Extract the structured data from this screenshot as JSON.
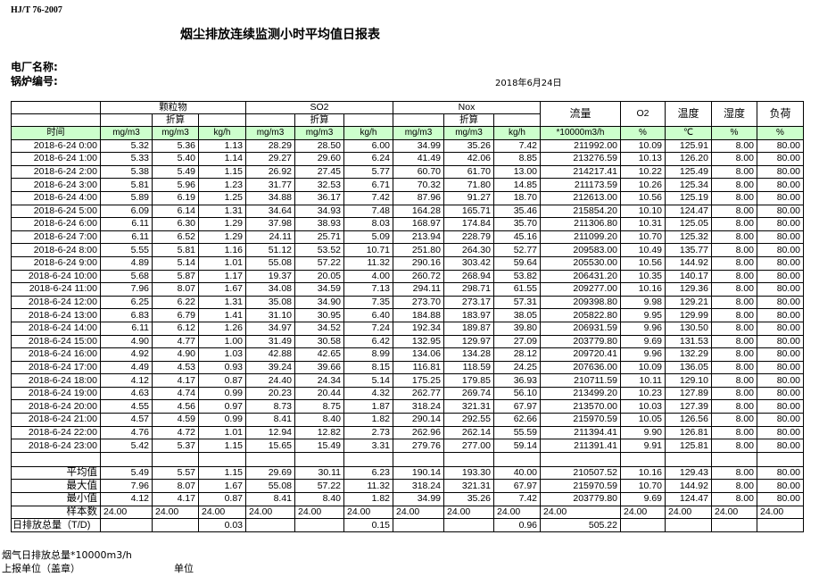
{
  "header": {
    "standard": "HJ/T  76-2007",
    "title": "烟尘排放连续监测小时平均值日报表",
    "plant_label": "电厂名称:",
    "boiler_label": "锅炉编号:",
    "date": "2018年6月24日"
  },
  "table": {
    "groups": [
      "颗粒物",
      "SO2",
      "Nox"
    ],
    "converted_label": "折算",
    "single_headers": [
      "流量",
      "O2",
      "温度",
      "湿度",
      "负荷"
    ],
    "unit_row": [
      "时间",
      "mg/m3",
      "mg/m3",
      "kg/h",
      "mg/m3",
      "mg/m3",
      "kg/h",
      "mg/m3",
      "mg/m3",
      "kg/h",
      "*10000m3/h",
      "%",
      "℃",
      "%",
      "%"
    ],
    "rows": [
      [
        "2018-6-24 0:00",
        "5.32",
        "5.36",
        "1.13",
        "28.29",
        "28.50",
        "6.00",
        "34.99",
        "35.26",
        "7.42",
        "211992.00",
        "10.09",
        "125.91",
        "8.00",
        "80.00"
      ],
      [
        "2018-6-24 1:00",
        "5.33",
        "5.40",
        "1.14",
        "29.27",
        "29.60",
        "6.24",
        "41.49",
        "42.06",
        "8.85",
        "213276.59",
        "10.13",
        "126.20",
        "8.00",
        "80.00"
      ],
      [
        "2018-6-24 2:00",
        "5.38",
        "5.49",
        "1.15",
        "26.92",
        "27.45",
        "5.77",
        "60.70",
        "61.70",
        "13.00",
        "214217.41",
        "10.22",
        "125.49",
        "8.00",
        "80.00"
      ],
      [
        "2018-6-24 3:00",
        "5.81",
        "5.96",
        "1.23",
        "31.77",
        "32.53",
        "6.71",
        "70.32",
        "71.80",
        "14.85",
        "211173.59",
        "10.26",
        "125.34",
        "8.00",
        "80.00"
      ],
      [
        "2018-6-24 4:00",
        "5.89",
        "6.19",
        "1.25",
        "34.88",
        "36.17",
        "7.42",
        "87.96",
        "91.27",
        "18.70",
        "212613.00",
        "10.56",
        "125.19",
        "8.00",
        "80.00"
      ],
      [
        "2018-6-24 5:00",
        "6.09",
        "6.14",
        "1.31",
        "34.64",
        "34.93",
        "7.48",
        "164.28",
        "165.71",
        "35.46",
        "215854.20",
        "10.10",
        "124.47",
        "8.00",
        "80.00"
      ],
      [
        "2018-6-24 6:00",
        "6.11",
        "6.30",
        "1.29",
        "37.98",
        "38.93",
        "8.03",
        "168.97",
        "174.84",
        "35.70",
        "211306.80",
        "10.31",
        "125.05",
        "8.00",
        "80.00"
      ],
      [
        "2018-6-24 7:00",
        "6.11",
        "6.52",
        "1.29",
        "24.11",
        "25.71",
        "5.09",
        "213.94",
        "228.79",
        "45.16",
        "211099.20",
        "10.70",
        "125.32",
        "8.00",
        "80.00"
      ],
      [
        "2018-6-24 8:00",
        "5.55",
        "5.81",
        "1.16",
        "51.12",
        "53.52",
        "10.71",
        "251.80",
        "264.30",
        "52.77",
        "209583.00",
        "10.49",
        "135.77",
        "8.00",
        "80.00"
      ],
      [
        "2018-6-24 9:00",
        "4.89",
        "5.14",
        "1.01",
        "55.08",
        "57.22",
        "11.32",
        "290.16",
        "303.42",
        "59.64",
        "205530.00",
        "10.56",
        "144.92",
        "8.00",
        "80.00"
      ],
      [
        "2018-6-24 10:00",
        "5.68",
        "5.87",
        "1.17",
        "19.37",
        "20.05",
        "4.00",
        "260.72",
        "268.94",
        "53.82",
        "206431.20",
        "10.35",
        "140.17",
        "8.00",
        "80.00"
      ],
      [
        "2018-6-24 11:00",
        "7.96",
        "8.07",
        "1.67",
        "34.08",
        "34.59",
        "7.13",
        "294.11",
        "298.71",
        "61.55",
        "209277.00",
        "10.16",
        "129.36",
        "8.00",
        "80.00"
      ],
      [
        "2018-6-24 12:00",
        "6.25",
        "6.22",
        "1.31",
        "35.08",
        "34.90",
        "7.35",
        "273.70",
        "273.17",
        "57.31",
        "209398.80",
        "9.98",
        "129.21",
        "8.00",
        "80.00"
      ],
      [
        "2018-6-24 13:00",
        "6.83",
        "6.79",
        "1.41",
        "31.10",
        "30.95",
        "6.40",
        "184.88",
        "183.97",
        "38.05",
        "205822.80",
        "9.95",
        "129.99",
        "8.00",
        "80.00"
      ],
      [
        "2018-6-24 14:00",
        "6.11",
        "6.12",
        "1.26",
        "34.97",
        "34.52",
        "7.24",
        "192.34",
        "189.87",
        "39.80",
        "206931.59",
        "9.96",
        "130.50",
        "8.00",
        "80.00"
      ],
      [
        "2018-6-24 15:00",
        "4.90",
        "4.77",
        "1.00",
        "31.49",
        "30.58",
        "6.42",
        "132.95",
        "129.97",
        "27.09",
        "203779.80",
        "9.69",
        "131.53",
        "8.00",
        "80.00"
      ],
      [
        "2018-6-24 16:00",
        "4.92",
        "4.90",
        "1.03",
        "42.88",
        "42.65",
        "8.99",
        "134.06",
        "134.28",
        "28.12",
        "209720.41",
        "9.96",
        "132.29",
        "8.00",
        "80.00"
      ],
      [
        "2018-6-24 17:00",
        "4.49",
        "4.53",
        "0.93",
        "39.24",
        "39.66",
        "8.15",
        "116.81",
        "118.59",
        "24.25",
        "207636.00",
        "10.09",
        "136.05",
        "8.00",
        "80.00"
      ],
      [
        "2018-6-24 18:00",
        "4.12",
        "4.17",
        "0.87",
        "24.40",
        "24.34",
        "5.14",
        "175.25",
        "179.85",
        "36.93",
        "210711.59",
        "10.11",
        "129.10",
        "8.00",
        "80.00"
      ],
      [
        "2018-6-24 19:00",
        "4.63",
        "4.74",
        "0.99",
        "20.23",
        "20.44",
        "4.32",
        "262.77",
        "269.74",
        "56.10",
        "213499.20",
        "10.23",
        "127.89",
        "8.00",
        "80.00"
      ],
      [
        "2018-6-24 20:00",
        "4.55",
        "4.56",
        "0.97",
        "8.73",
        "8.75",
        "1.87",
        "318.24",
        "321.31",
        "67.97",
        "213570.00",
        "10.03",
        "127.39",
        "8.00",
        "80.00"
      ],
      [
        "2018-6-24 21:00",
        "4.57",
        "4.59",
        "0.99",
        "8.41",
        "8.40",
        "1.82",
        "290.14",
        "292.55",
        "62.66",
        "215970.59",
        "10.05",
        "126.56",
        "8.00",
        "80.00"
      ],
      [
        "2018-6-24 22:00",
        "4.76",
        "4.72",
        "1.01",
        "12.94",
        "12.82",
        "2.73",
        "262.96",
        "262.14",
        "55.59",
        "211394.41",
        "9.90",
        "126.81",
        "8.00",
        "80.00"
      ],
      [
        "2018-6-24 23:00",
        "5.42",
        "5.37",
        "1.15",
        "15.65",
        "15.49",
        "3.31",
        "279.76",
        "277.00",
        "59.14",
        "211391.41",
        "9.91",
        "125.81",
        "8.00",
        "80.00"
      ]
    ],
    "stats": [
      [
        "平均值",
        "5.49",
        "5.57",
        "1.15",
        "29.69",
        "30.11",
        "6.23",
        "190.14",
        "193.30",
        "40.00",
        "210507.52",
        "10.16",
        "129.43",
        "8.00",
        "80.00"
      ],
      [
        "最大值",
        "7.96",
        "8.07",
        "1.67",
        "55.08",
        "57.22",
        "11.32",
        "318.24",
        "321.31",
        "67.97",
        "215970.59",
        "10.70",
        "144.92",
        "8.00",
        "80.00"
      ],
      [
        "最小值",
        "4.12",
        "4.17",
        "0.87",
        "8.41",
        "8.40",
        "1.82",
        "34.99",
        "35.26",
        "7.42",
        "203779.80",
        "9.69",
        "124.47",
        "8.00",
        "80.00"
      ],
      [
        "样本数",
        "24.00",
        "24.00",
        "24.00",
        "24.00",
        "24.00",
        "24.00",
        "24.00",
        "24.00",
        "24.00",
        "24.00",
        "24.00",
        "24.00",
        "24.00",
        "24.00"
      ]
    ],
    "total_row": [
      "日排放总量（T/D)",
      "",
      "",
      "0.03",
      "",
      "",
      "0.15",
      "",
      "",
      "0.96",
      "505.22",
      "",
      "",
      "",
      ""
    ]
  },
  "footer": {
    "flue_gas_total": "烟气日排放总量*10000m3/h",
    "reporting_unit": "上报单位（盖章）",
    "unit": "单位"
  }
}
